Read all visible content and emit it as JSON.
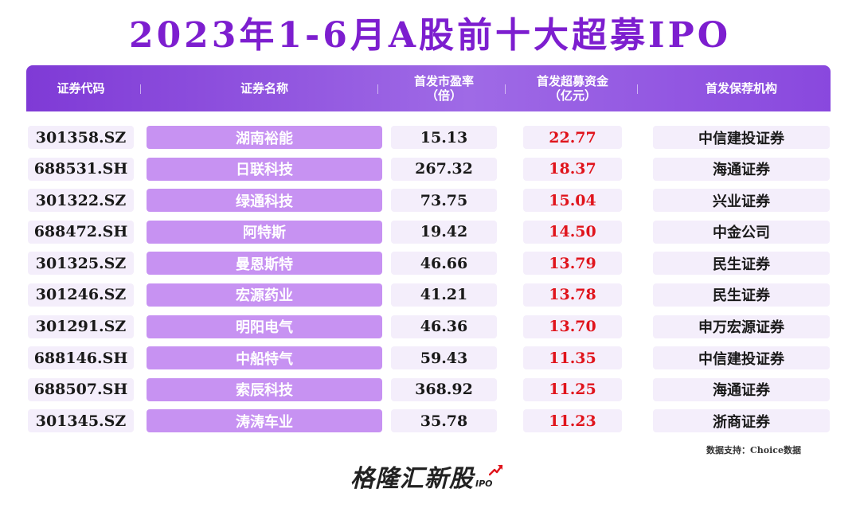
{
  "title": "2023年1-6月A股前十大超募IPO",
  "headers": {
    "code": "证券代码",
    "name": "证券名称",
    "pe_line1": "首发市盈率",
    "pe_line2": "（倍）",
    "fund_line1": "首发超募资金",
    "fund_line2": "（亿元）",
    "inst": "首发保荐机构"
  },
  "rows": [
    {
      "code": "301358.SZ",
      "name": "湖南裕能",
      "pe": "15.13",
      "fund": "22.77",
      "inst": "中信建投证券"
    },
    {
      "code": "688531.SH",
      "name": "日联科技",
      "pe": "267.32",
      "fund": "18.37",
      "inst": "海通证券"
    },
    {
      "code": "301322.SZ",
      "name": "绿通科技",
      "pe": "73.75",
      "fund": "15.04",
      "inst": "兴业证券"
    },
    {
      "code": "688472.SH",
      "name": "阿特斯",
      "pe": "19.42",
      "fund": "14.50",
      "inst": "中金公司"
    },
    {
      "code": "301325.SZ",
      "name": "曼恩斯特",
      "pe": "46.66",
      "fund": "13.79",
      "inst": "民生证券"
    },
    {
      "code": "301246.SZ",
      "name": "宏源药业",
      "pe": "41.21",
      "fund": "13.78",
      "inst": "民生证券"
    },
    {
      "code": "301291.SZ",
      "name": "明阳电气",
      "pe": "46.36",
      "fund": "13.70",
      "inst": "申万宏源证券"
    },
    {
      "code": "688146.SH",
      "name": "中船特气",
      "pe": "59.43",
      "fund": "11.35",
      "inst": "中信建投证券"
    },
    {
      "code": "688507.SH",
      "name": "索辰科技",
      "pe": "368.92",
      "fund": "11.25",
      "inst": "海通证券"
    },
    {
      "code": "301345.SZ",
      "name": "涛涛车业",
      "pe": "35.78",
      "fund": "11.23",
      "inst": "浙商证券"
    }
  ],
  "source": "数据支持：Choice数据",
  "brand": {
    "name": "格隆汇新股",
    "sub": "IPO",
    "icon": "rising-arrow-icon"
  },
  "colors": {
    "title": "#7d1ecf",
    "header": "#8f52de",
    "name_cell": "#c792f2",
    "fund_text": "#e0141c",
    "cell_bg": "#f4eefb"
  }
}
